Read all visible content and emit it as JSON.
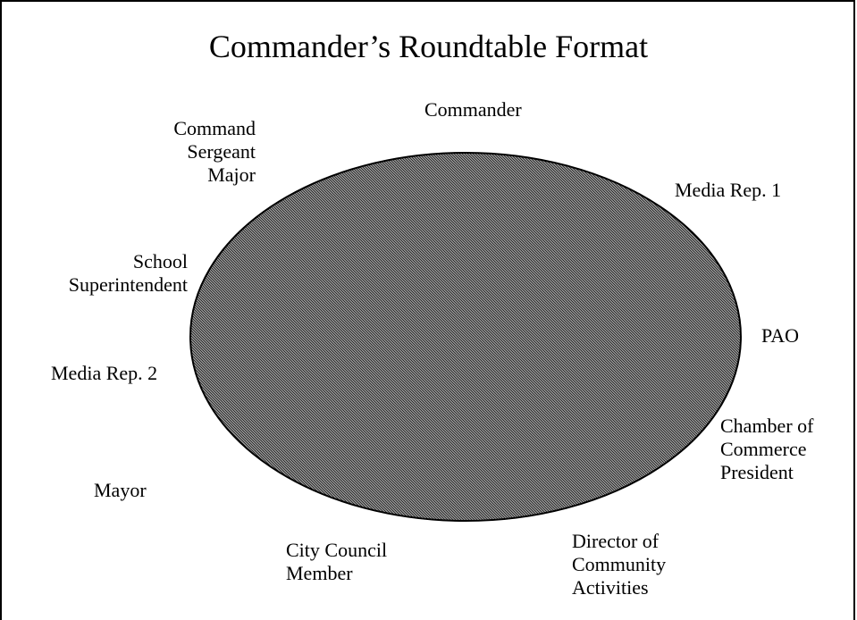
{
  "title": "Commander’s Roundtable Format",
  "colors": {
    "table_fill": "#555555",
    "table_stroke": "#000000",
    "background": "#ffffff"
  },
  "seats": {
    "commander": [
      "Commander"
    ],
    "command_sergeant_major": [
      "Command",
      "Sergeant",
      "Major"
    ],
    "media_rep_1": [
      "Media Rep. 1"
    ],
    "school_superintendent": [
      "School",
      "Superintendent"
    ],
    "pao": [
      "PAO"
    ],
    "media_rep_2": [
      "Media Rep. 2"
    ],
    "chamber_of_commerce_president": [
      "Chamber of",
      "Commerce",
      "President"
    ],
    "mayor": [
      "Mayor"
    ],
    "city_council_member": [
      "City Council",
      "Member"
    ],
    "director_of_community_activities": [
      "Director of",
      "Community",
      "Activities"
    ]
  }
}
